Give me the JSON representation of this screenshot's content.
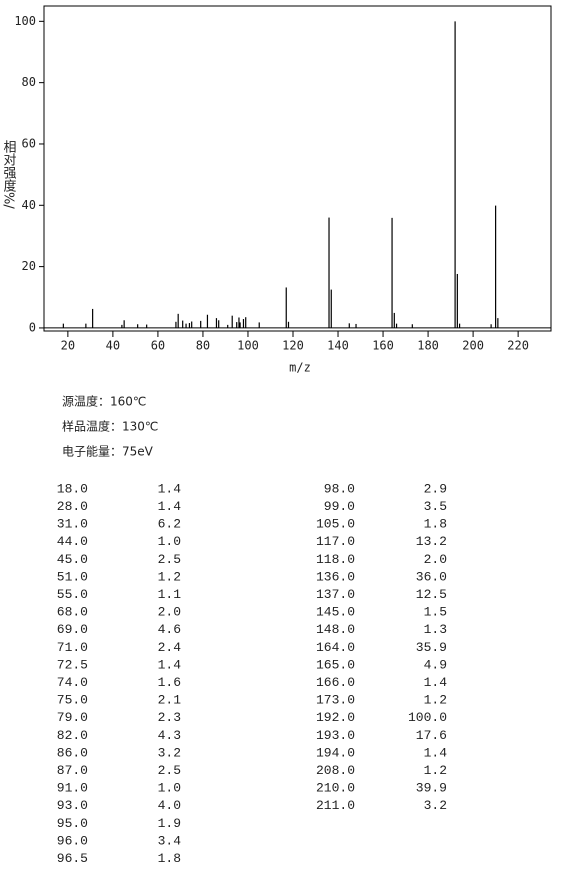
{
  "chart_data": {
    "type": "bar",
    "x_label": "m/z",
    "y_label": "相对强度%/",
    "x": [
      18,
      28,
      31,
      44,
      45,
      51,
      55,
      68,
      69,
      71,
      72.5,
      74,
      75,
      79,
      82,
      86,
      87,
      91,
      93,
      95,
      96,
      96.5,
      98,
      99,
      105,
      117,
      118,
      136,
      137,
      145,
      148,
      164,
      165,
      166,
      173,
      192,
      193,
      194,
      208,
      210,
      211
    ],
    "values": [
      1.4,
      1.4,
      6.2,
      1.0,
      2.5,
      1.2,
      1.1,
      2.0,
      4.6,
      2.4,
      1.4,
      1.6,
      2.1,
      2.3,
      4.3,
      3.2,
      2.5,
      1.0,
      4.0,
      1.9,
      3.4,
      1.8,
      2.9,
      3.5,
      1.8,
      13.2,
      2.0,
      36.0,
      12.5,
      1.5,
      1.3,
      35.9,
      4.9,
      1.4,
      1.2,
      100.0,
      17.6,
      1.4,
      1.2,
      39.9,
      3.2
    ],
    "x_labels": [
      "18.0",
      "28.0",
      "31.0",
      "44.0",
      "45.0",
      "51.0",
      "55.0",
      "68.0",
      "69.0",
      "71.0",
      "72.5",
      "74.0",
      "75.0",
      "79.0",
      "82.0",
      "86.0",
      "87.0",
      "91.0",
      "93.0",
      "95.0",
      "96.0",
      "96.5",
      "98.0",
      "99.0",
      "105.0",
      "117.0",
      "118.0",
      "136.0",
      "137.0",
      "145.0",
      "148.0",
      "164.0",
      "165.0",
      "166.0",
      "173.0",
      "192.0",
      "193.0",
      "194.0",
      "208.0",
      "210.0",
      "211.0"
    ],
    "value_labels": [
      "1.4",
      "1.4",
      "6.2",
      "1.0",
      "2.5",
      "1.2",
      "1.1",
      "2.0",
      "4.6",
      "2.4",
      "1.4",
      "1.6",
      "2.1",
      "2.3",
      "4.3",
      "3.2",
      "2.5",
      "1.0",
      "4.0",
      "1.9",
      "3.4",
      "1.8",
      "2.9",
      "3.5",
      "1.8",
      "13.2",
      "2.0",
      "36.0",
      "12.5",
      "1.5",
      "1.3",
      "35.9",
      "4.9",
      "1.4",
      "1.2",
      "100.0",
      "17.6",
      "1.4",
      "1.2",
      "39.9",
      "3.2"
    ],
    "color": "#000000",
    "xlim": [
      9.4,
      234.6
    ],
    "xticks": [
      20,
      40,
      60,
      80,
      100,
      120,
      140,
      160,
      180,
      200,
      220
    ],
    "ylim": [
      -1,
      105
    ],
    "yticks": [
      0,
      20,
      40,
      60,
      80,
      100
    ]
  },
  "conditions": [
    "源温度：160℃",
    "样品温度：130℃",
    "电子能量：75eV"
  ]
}
